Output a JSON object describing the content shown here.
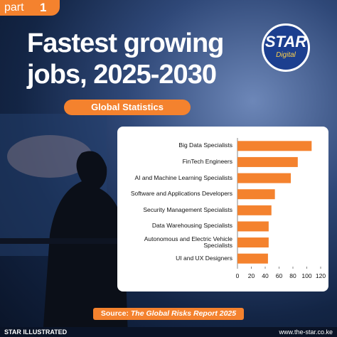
{
  "header": {
    "part": "part",
    "part_number": "1",
    "title_line1": "Fastest growing",
    "title_line2": "jobs, 2025-2030",
    "subtitle": "Global Statistics"
  },
  "logo": {
    "name": "STAR",
    "tagline": "Digital"
  },
  "chart_data": {
    "type": "bar",
    "orientation": "horizontal",
    "categories": [
      "Big Data Specialists",
      "FinTech Engineers",
      "AI and Machine Learning Specialists",
      "Software and Applications Developers",
      "Security Management Specialists",
      "Data Warehousing Specialists",
      "Autonomous and Electric Vehicle Specialists",
      "UI and UX Designers"
    ],
    "values": [
      107,
      87,
      77,
      54,
      49,
      45,
      45,
      44
    ],
    "color": "#f4822e",
    "xlim": [
      0,
      120
    ],
    "xticks": [
      0,
      20,
      40,
      60,
      80,
      100,
      120
    ]
  },
  "source": {
    "label": "Source:",
    "text": "The Global Risks Report 2025"
  },
  "footer": {
    "left": "STAR ILLUSTRATED",
    "right": "www.the-star.co.ke"
  }
}
